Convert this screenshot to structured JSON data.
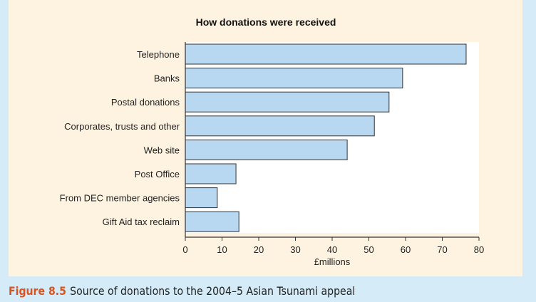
{
  "chart_data": {
    "type": "bar",
    "orientation": "horizontal",
    "title": "How donations were received",
    "xlabel": "£millions",
    "ylabel": "",
    "xlim": [
      0,
      80
    ],
    "xticks": [
      0,
      10,
      20,
      30,
      40,
      50,
      60,
      70,
      80
    ],
    "categories": [
      "Telephone",
      "Banks",
      "Postal donations",
      "Corporates, trusts and other",
      "Web site",
      "Post Office",
      "From DEC member agencies",
      "Gift Aid tax reclaim"
    ],
    "values": [
      76.5,
      59.2,
      55.5,
      51.5,
      44.1,
      13.8,
      8.7,
      14.6
    ],
    "bar_color": "#b8d7f0",
    "grid": false
  },
  "caption": {
    "figure_label": "Figure 8.5",
    "text": "Source of donations to the 2004–5 Asian Tsunami appeal",
    "label_color": "#d9531e"
  }
}
